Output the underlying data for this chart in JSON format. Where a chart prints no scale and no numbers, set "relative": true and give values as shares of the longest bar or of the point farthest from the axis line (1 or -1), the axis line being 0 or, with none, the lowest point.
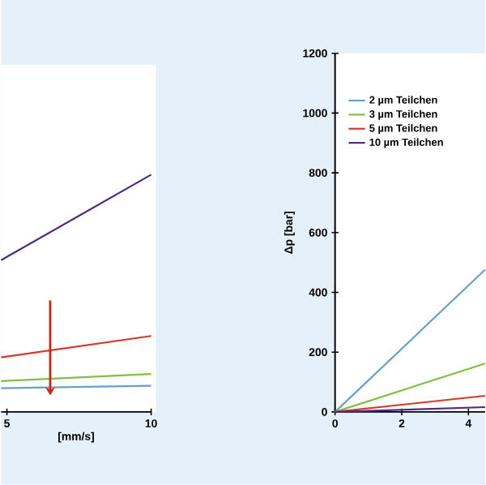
{
  "chart_data": [
    {
      "type": "line",
      "relative": true,
      "xlabel": "[mm/s]",
      "xlim": [
        4.8,
        10
      ],
      "xticks": [
        5,
        10
      ],
      "x": [
        4.8,
        10
      ],
      "series": [
        {
          "color": "#6a9ecb",
          "values": [
            0.1,
            0.11
          ]
        },
        {
          "color": "#7dc242",
          "values": [
            0.13,
            0.16
          ]
        },
        {
          "color": "#d9372a",
          "values": [
            0.23,
            0.32
          ]
        },
        {
          "color": "#4b2c83",
          "values": [
            0.64,
            1
          ]
        }
      ],
      "legend": false,
      "marker": "none",
      "line_style": "solid",
      "grid": false
    },
    {
      "type": "line",
      "ylabel": "Δp [bar]",
      "xlim": [
        0,
        4.5
      ],
      "xticks": [
        0,
        2,
        4
      ],
      "ylim": [
        0,
        1200
      ],
      "yticks": [
        0,
        200,
        400,
        600,
        800,
        1000,
        1200
      ],
      "x": [
        0,
        4.5
      ],
      "series": [
        {
          "name": "2 µm Teilchen",
          "color": "#6a9ecb",
          "values": [
            0,
            476
          ]
        },
        {
          "name": "3 µm Teilchen",
          "color": "#7dc242",
          "values": [
            0,
            162
          ]
        },
        {
          "name": "5 µm Teilchen",
          "color": "#d9372a",
          "values": [
            0,
            54
          ]
        },
        {
          "name": "10 µm Teilchen",
          "color": "#4b2c83",
          "values": [
            0,
            16
          ]
        }
      ],
      "legend": "top left",
      "marker": "none",
      "line_style": "solid",
      "grid": false
    }
  ]
}
